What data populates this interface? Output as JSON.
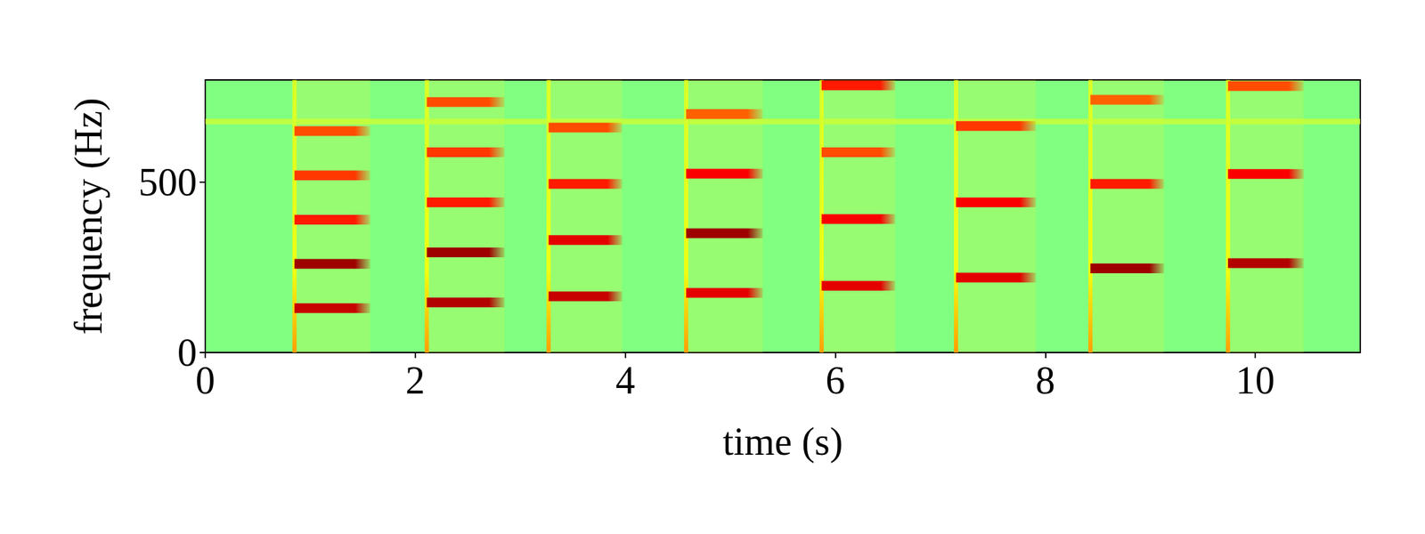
{
  "chart_data": {
    "type": "spectrogram",
    "xlabel": "time (s)",
    "ylabel": "frequency (Hz)",
    "xlim": [
      0,
      11
    ],
    "ylim": [
      0,
      800
    ],
    "xticks": [
      0,
      2,
      4,
      6,
      8,
      10
    ],
    "yticks": [
      0,
      500
    ],
    "grid": false,
    "level_range": [
      0,
      1
    ],
    "background_level": 0.5,
    "onset_level": 0.62,
    "hum": {
      "start": 0,
      "end": 11,
      "frequency": 678,
      "level": 0.58
    },
    "notes": [
      {
        "start": 0.85,
        "end": 1.57,
        "harmonics": [
          130,
          260,
          390,
          520,
          650
        ],
        "levels": [
          0.93,
          0.97,
          0.85,
          0.82,
          0.8
        ]
      },
      {
        "start": 2.11,
        "end": 2.85,
        "harmonics": [
          147,
          294,
          441,
          588,
          735
        ],
        "levels": [
          0.95,
          0.97,
          0.85,
          0.82,
          0.8
        ]
      },
      {
        "start": 3.27,
        "end": 3.97,
        "harmonics": [
          165,
          330,
          495,
          660
        ],
        "levels": [
          0.93,
          0.9,
          0.85,
          0.8
        ]
      },
      {
        "start": 4.58,
        "end": 5.31,
        "harmonics": [
          175,
          350,
          525,
          700
        ],
        "levels": [
          0.9,
          0.97,
          0.88,
          0.78
        ]
      },
      {
        "start": 5.87,
        "end": 6.57,
        "harmonics": [
          196,
          392,
          588,
          784
        ],
        "levels": [
          0.9,
          0.88,
          0.8,
          0.85
        ]
      },
      {
        "start": 7.15,
        "end": 7.91,
        "harmonics": [
          220,
          441,
          665
        ],
        "levels": [
          0.9,
          0.88,
          0.82
        ]
      },
      {
        "start": 8.43,
        "end": 9.13,
        "harmonics": [
          247,
          495,
          742
        ],
        "levels": [
          0.97,
          0.85,
          0.78
        ]
      },
      {
        "start": 9.74,
        "end": 10.46,
        "harmonics": [
          262,
          524,
          782
        ],
        "levels": [
          0.95,
          0.88,
          0.8
        ]
      }
    ]
  }
}
